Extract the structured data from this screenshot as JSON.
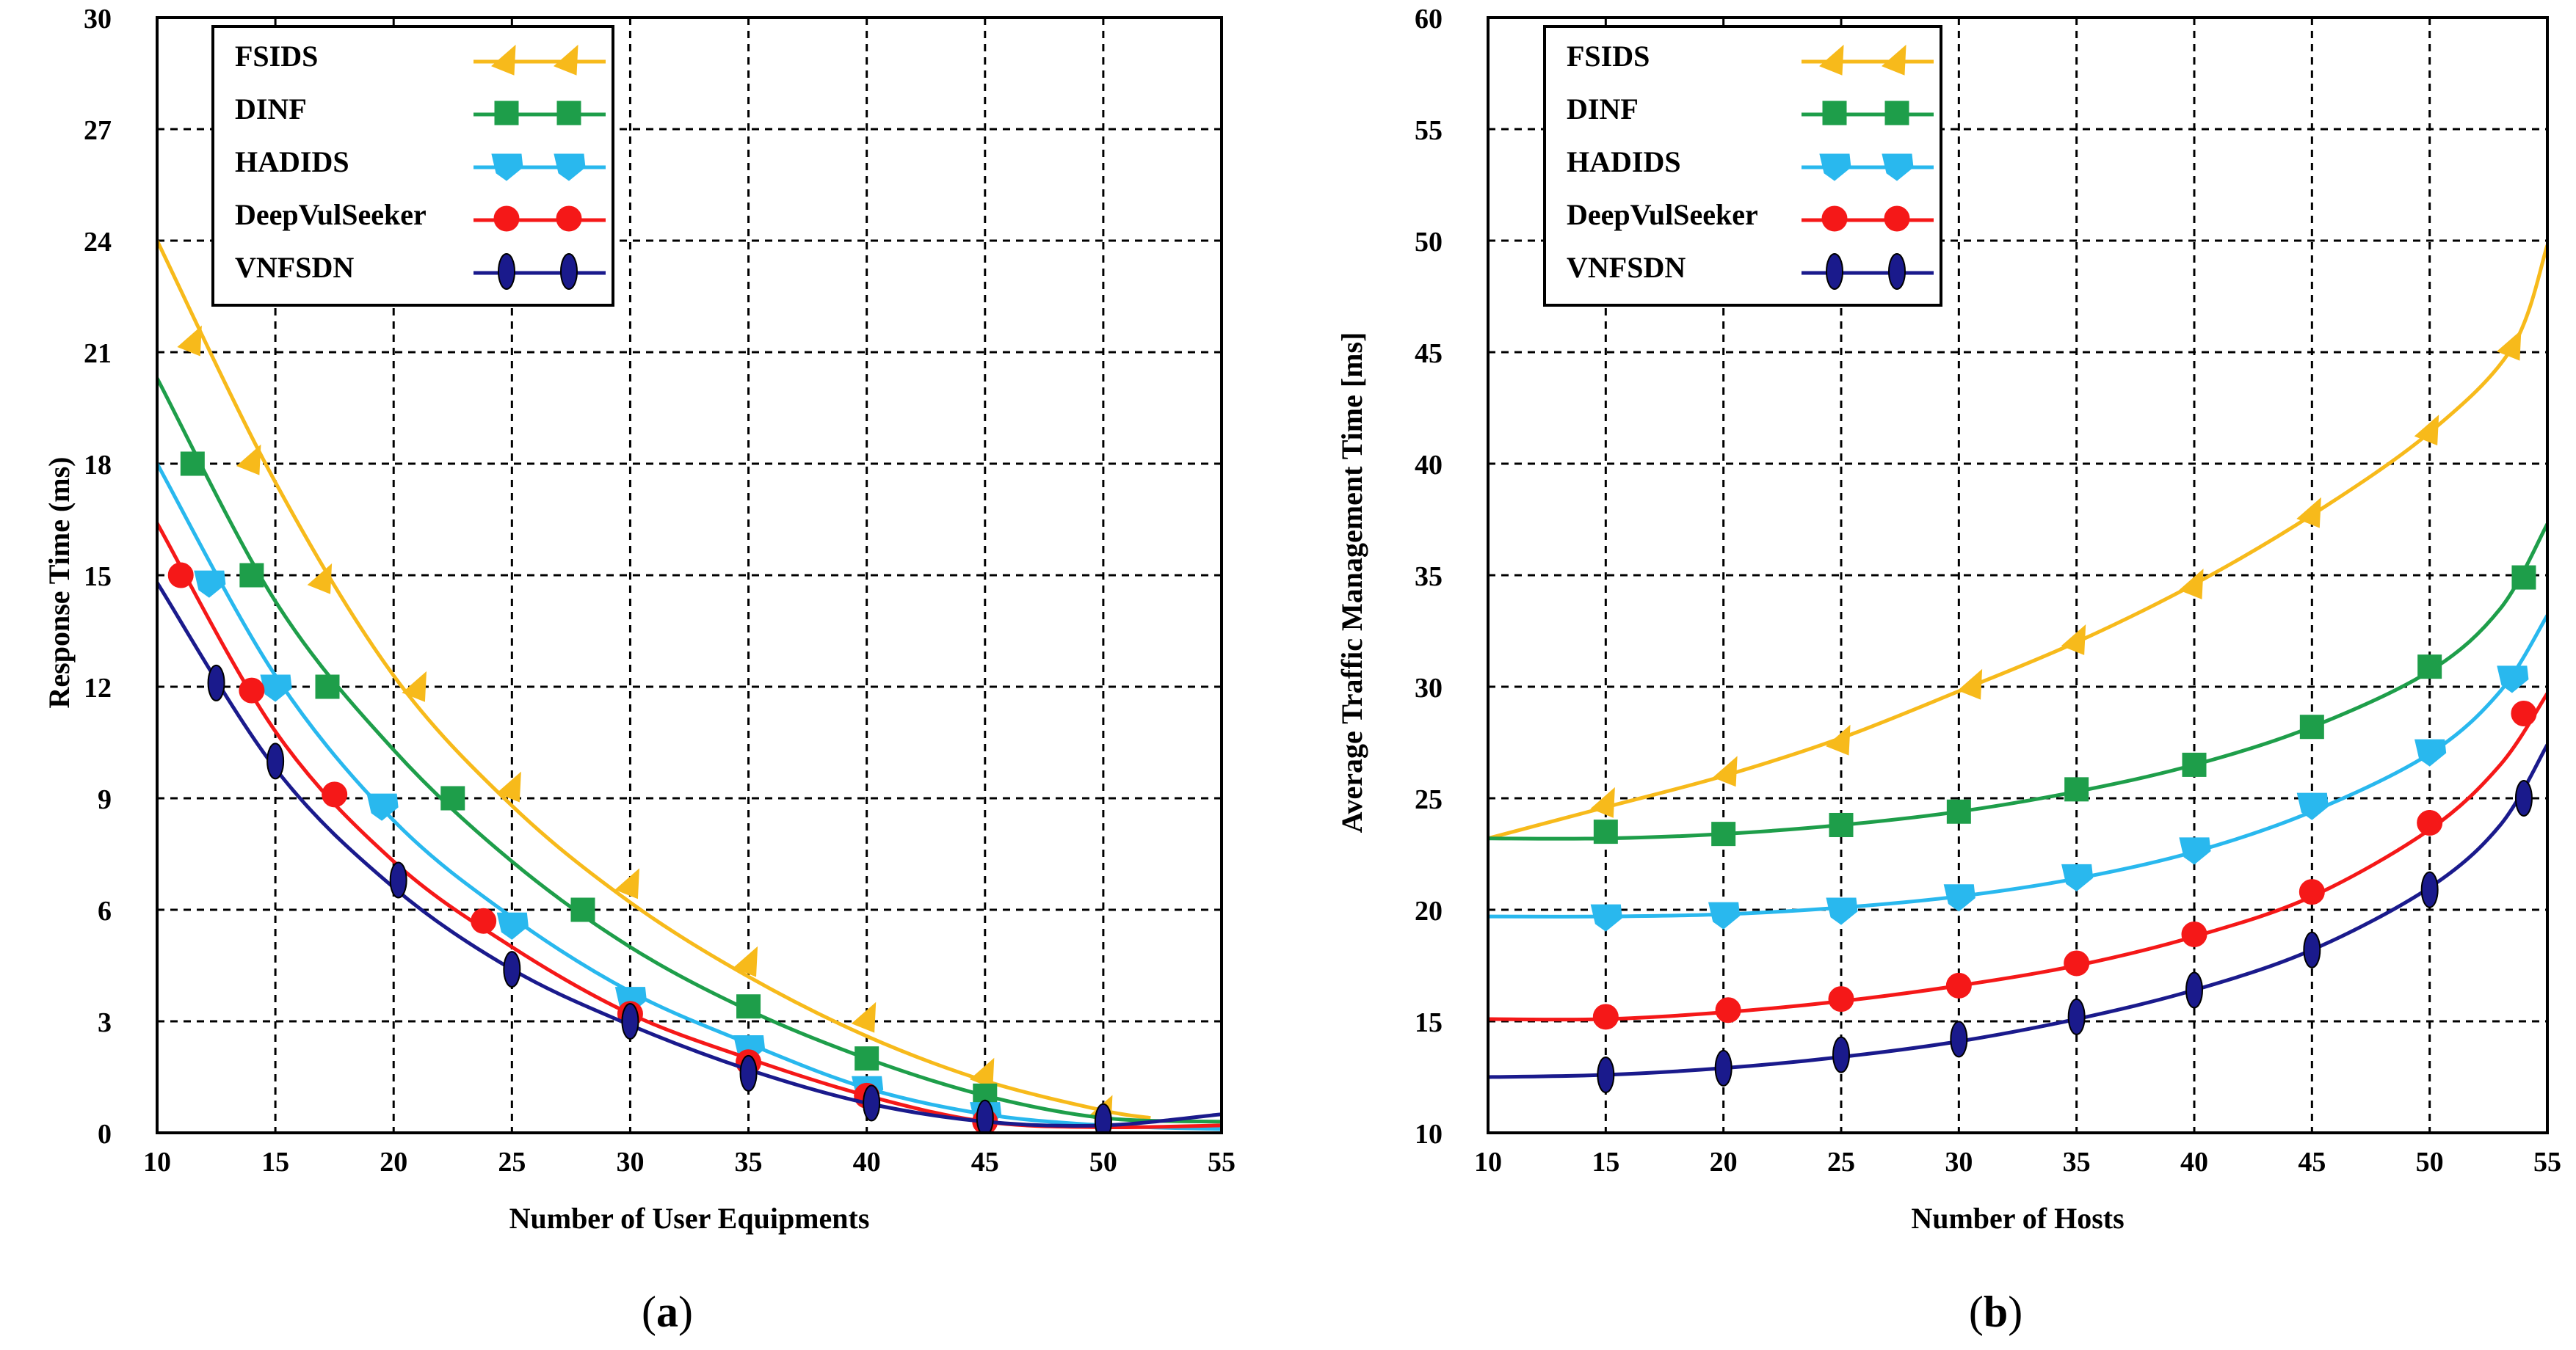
{
  "chart_data": [
    {
      "type": "line",
      "panel_label": "a",
      "title": "",
      "xlabel": "Number of User Equipments",
      "ylabel": "Response Time (ms)",
      "xlim": [
        10,
        55
      ],
      "ylim": [
        0,
        30
      ],
      "xticks": [
        "10",
        "15",
        "20",
        "25",
        "30",
        "35",
        "40",
        "45",
        "50",
        "55"
      ],
      "yticks": [
        "0",
        "3",
        "6",
        "9",
        "12",
        "15",
        "18",
        "21",
        "24",
        "27",
        "30"
      ],
      "grid": true,
      "legend_position": "top-left",
      "series": [
        {
          "name": "FSIDS",
          "color": "#F7BA1B",
          "marker": "triangle",
          "curve": [
            [
              10,
              24.0
            ],
            [
              15,
              17.5
            ],
            [
              20,
              12.3
            ],
            [
              25,
              8.8
            ],
            [
              30,
              6.2
            ],
            [
              35,
              4.2
            ],
            [
              40,
              2.6
            ],
            [
              45,
              1.4
            ],
            [
              50,
              0.6
            ],
            [
              52,
              0.4
            ]
          ],
          "markers": [
            [
              11.5,
              21.3
            ],
            [
              14,
              18.1
            ],
            [
              17,
              14.9
            ],
            [
              21,
              12.0
            ],
            [
              25,
              9.3
            ],
            [
              30,
              6.7
            ],
            [
              35,
              4.6
            ],
            [
              40,
              3.1
            ],
            [
              45,
              1.6
            ],
            [
              50,
              0.6
            ]
          ]
        },
        {
          "name": "DINF",
          "color": "#1E9E4A",
          "marker": "square",
          "curve": [
            [
              10,
              20.3
            ],
            [
              15,
              14.3
            ],
            [
              20,
              10.3
            ],
            [
              25,
              7.3
            ],
            [
              30,
              5.0
            ],
            [
              35,
              3.3
            ],
            [
              40,
              2.0
            ],
            [
              45,
              1.0
            ],
            [
              50,
              0.4
            ],
            [
              55,
              0.3
            ]
          ],
          "markers": [
            [
              11.5,
              18.0
            ],
            [
              14,
              15.0
            ],
            [
              17.2,
              12.0
            ],
            [
              22.5,
              9.0
            ],
            [
              28,
              6.0
            ],
            [
              35,
              3.4
            ],
            [
              40,
              2.0
            ],
            [
              45,
              1.0
            ]
          ]
        },
        {
          "name": "HADIDS",
          "color": "#29B8EE",
          "marker": "pentagon",
          "curve": [
            [
              10,
              18.0
            ],
            [
              15,
              12.3
            ],
            [
              20,
              8.4
            ],
            [
              25,
              5.8
            ],
            [
              30,
              3.8
            ],
            [
              35,
              2.4
            ],
            [
              40,
              1.2
            ],
            [
              45,
              0.5
            ],
            [
              50,
              0.2
            ],
            [
              55,
              0.1
            ]
          ],
          "markers": [
            [
              12.2,
              14.8
            ],
            [
              15,
              12.0
            ],
            [
              19.5,
              8.8
            ],
            [
              25,
              5.6
            ],
            [
              30,
              3.6
            ],
            [
              35,
              2.3
            ],
            [
              40,
              1.2
            ],
            [
              45,
              0.5
            ]
          ]
        },
        {
          "name": "DeepVulSeeker",
          "color": "#F51818",
          "marker": "circle",
          "curve": [
            [
              10,
              16.4
            ],
            [
              15,
              10.8
            ],
            [
              20,
              7.3
            ],
            [
              25,
              5.0
            ],
            [
              30,
              3.2
            ],
            [
              35,
              2.0
            ],
            [
              40,
              1.0
            ],
            [
              45,
              0.3
            ],
            [
              50,
              0.15
            ],
            [
              55,
              0.2
            ]
          ],
          "markers": [
            [
              11,
              15.0
            ],
            [
              14,
              11.9
            ],
            [
              17.5,
              9.1
            ],
            [
              23.8,
              5.7
            ],
            [
              30,
              3.2
            ],
            [
              35,
              1.9
            ],
            [
              40,
              1.0
            ],
            [
              45,
              0.3
            ]
          ]
        },
        {
          "name": "VNFSDN",
          "color": "#1A1A8C",
          "marker": "ellipse",
          "curve": [
            [
              10,
              14.8
            ],
            [
              15,
              9.8
            ],
            [
              20,
              6.6
            ],
            [
              25,
              4.4
            ],
            [
              30,
              2.9
            ],
            [
              35,
              1.7
            ],
            [
              40,
              0.8
            ],
            [
              45,
              0.3
            ],
            [
              50,
              0.2
            ],
            [
              55,
              0.5
            ]
          ],
          "markers": [
            [
              12.5,
              12.1
            ],
            [
              15,
              10.0
            ],
            [
              20.2,
              6.8
            ],
            [
              25,
              4.4
            ],
            [
              30,
              3.0
            ],
            [
              35,
              1.6
            ],
            [
              40.2,
              0.8
            ],
            [
              45,
              0.4
            ],
            [
              50,
              0.3
            ]
          ]
        }
      ]
    },
    {
      "type": "line",
      "panel_label": "b",
      "title": "",
      "xlabel": "Number of Hosts",
      "ylabel": "Average Traffic Management Time [ms]",
      "xlim": [
        10,
        55
      ],
      "ylim": [
        10,
        60
      ],
      "xticks": [
        "10",
        "15",
        "20",
        "25",
        "30",
        "35",
        "40",
        "45",
        "50",
        "55"
      ],
      "yticks": [
        "10",
        "15",
        "20",
        "25",
        "30",
        "35",
        "40",
        "45",
        "50",
        "55",
        "60"
      ],
      "grid": true,
      "legend_position": "top-left",
      "series": [
        {
          "name": "FSIDS",
          "color": "#F7BA1B",
          "marker": "triangle",
          "curve": [
            [
              10,
              23.2
            ],
            [
              15,
              24.6
            ],
            [
              20,
              26.0
            ],
            [
              25,
              27.7
            ],
            [
              30,
              29.8
            ],
            [
              35,
              32.0
            ],
            [
              40,
              34.6
            ],
            [
              45,
              37.7
            ],
            [
              50,
              41.4
            ],
            [
              53.5,
              45.2
            ],
            [
              55,
              49.8
            ]
          ],
          "markers": [
            [
              15,
              24.8
            ],
            [
              20.2,
              26.2
            ],
            [
              25,
              27.6
            ],
            [
              30.6,
              30.1
            ],
            [
              35,
              32.1
            ],
            [
              40,
              34.6
            ],
            [
              45,
              37.8
            ],
            [
              50,
              41.5
            ],
            [
              53.5,
              45.3
            ]
          ]
        },
        {
          "name": "DINF",
          "color": "#1E9E4A",
          "marker": "square",
          "curve": [
            [
              10,
              23.2
            ],
            [
              15,
              23.2
            ],
            [
              20,
              23.4
            ],
            [
              25,
              23.8
            ],
            [
              30,
              24.4
            ],
            [
              35,
              25.3
            ],
            [
              40,
              26.5
            ],
            [
              45,
              28.2
            ],
            [
              50,
              30.7
            ],
            [
              53,
              33.5
            ],
            [
              55,
              37.3
            ]
          ],
          "markers": [
            [
              15,
              23.5
            ],
            [
              20,
              23.4
            ],
            [
              25,
              23.8
            ],
            [
              30,
              24.4
            ],
            [
              35,
              25.4
            ],
            [
              40,
              26.5
            ],
            [
              45,
              28.2
            ],
            [
              50,
              30.9
            ],
            [
              54,
              34.9
            ]
          ]
        },
        {
          "name": "HADIDS",
          "color": "#29B8EE",
          "marker": "pentagon",
          "curve": [
            [
              10,
              19.7
            ],
            [
              15,
              19.7
            ],
            [
              20,
              19.8
            ],
            [
              25,
              20.1
            ],
            [
              30,
              20.6
            ],
            [
              35,
              21.4
            ],
            [
              40,
              22.6
            ],
            [
              45,
              24.4
            ],
            [
              50,
              27.0
            ],
            [
              53,
              29.8
            ],
            [
              55,
              33.2
            ]
          ],
          "markers": [
            [
              15,
              19.7
            ],
            [
              20,
              19.8
            ],
            [
              25,
              20.0
            ],
            [
              30,
              20.6
            ],
            [
              35,
              21.5
            ],
            [
              40,
              22.7
            ],
            [
              45,
              24.7
            ],
            [
              50,
              27.1
            ],
            [
              53.5,
              30.4
            ]
          ]
        },
        {
          "name": "DeepVulSeeker",
          "color": "#F51818",
          "marker": "circle",
          "curve": [
            [
              10,
              15.1
            ],
            [
              15,
              15.1
            ],
            [
              20,
              15.4
            ],
            [
              25,
              15.9
            ],
            [
              30,
              16.6
            ],
            [
              35,
              17.5
            ],
            [
              40,
              18.8
            ],
            [
              45,
              20.6
            ],
            [
              50,
              23.6
            ],
            [
              53,
              26.5
            ],
            [
              55,
              29.7
            ]
          ],
          "markers": [
            [
              15,
              15.2
            ],
            [
              20.2,
              15.5
            ],
            [
              25,
              16.0
            ],
            [
              30,
              16.6
            ],
            [
              35,
              17.6
            ],
            [
              40,
              18.9
            ],
            [
              45,
              20.8
            ],
            [
              50,
              23.9
            ],
            [
              54,
              28.8
            ]
          ]
        },
        {
          "name": "VNFSDN",
          "color": "#1A1A8C",
          "marker": "ellipse",
          "curve": [
            [
              10,
              12.5
            ],
            [
              15,
              12.6
            ],
            [
              20,
              12.9
            ],
            [
              25,
              13.4
            ],
            [
              30,
              14.1
            ],
            [
              35,
              15.1
            ],
            [
              40,
              16.4
            ],
            [
              45,
              18.2
            ],
            [
              50,
              21.0
            ],
            [
              53,
              23.8
            ],
            [
              55,
              27.4
            ]
          ],
          "markers": [
            [
              15,
              12.6
            ],
            [
              20,
              12.9
            ],
            [
              25,
              13.5
            ],
            [
              30,
              14.2
            ],
            [
              35,
              15.2
            ],
            [
              40,
              16.4
            ],
            [
              45,
              18.2
            ],
            [
              50,
              20.9
            ],
            [
              54,
              25.0
            ]
          ]
        }
      ]
    }
  ]
}
